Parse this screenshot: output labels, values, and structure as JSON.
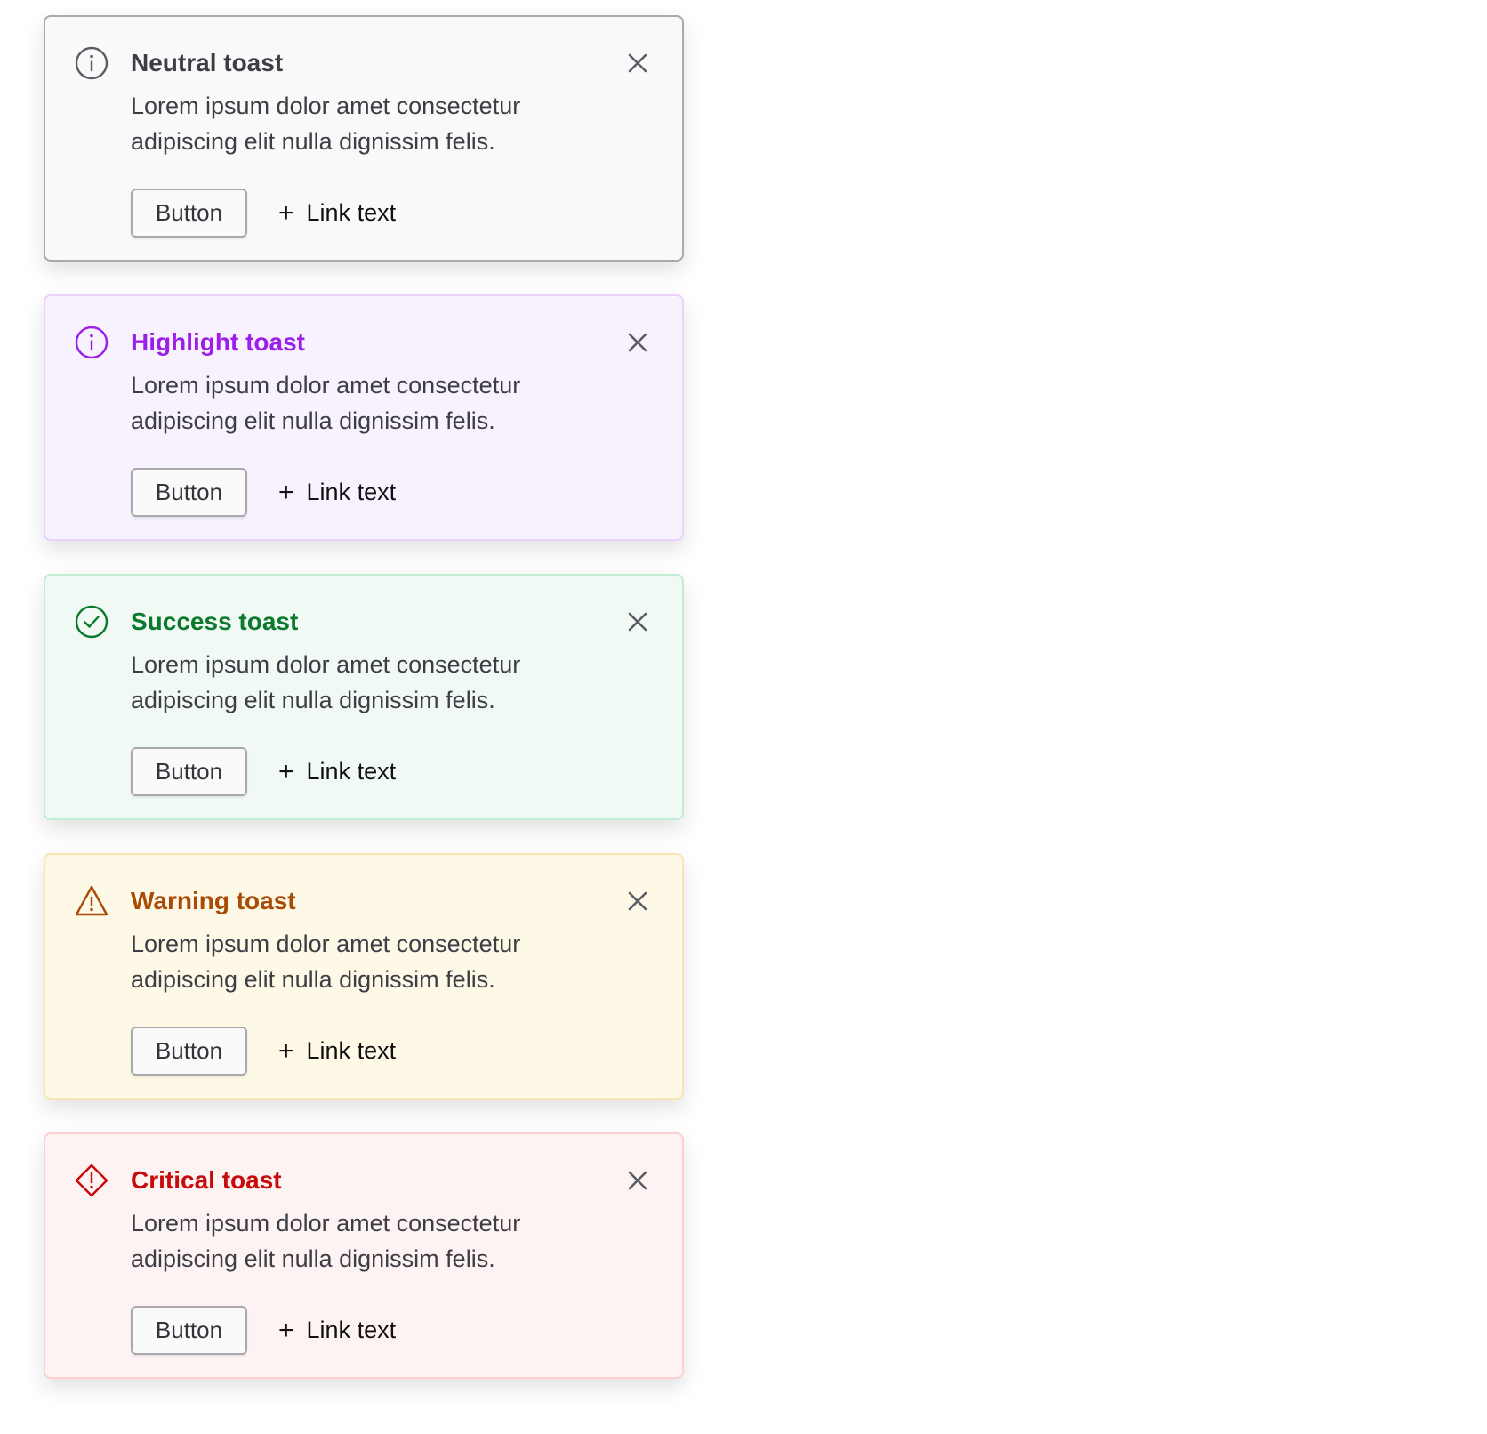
{
  "toasts": [
    {
      "variant": "neutral",
      "icon": "info-icon",
      "title": "Neutral toast",
      "body": "Lorem ipsum dolor amet consectetur adipiscing elit nulla dignissim felis.",
      "button_label": "Button",
      "link_label": "Link text",
      "link_icon": "plus-icon",
      "close_icon": "close-icon",
      "colors": {
        "bg": "#f9f9f9",
        "border": "#a9a9ae",
        "accent": "#3d3d45",
        "icon": "#5c5c66"
      }
    },
    {
      "variant": "highlight",
      "icon": "info-icon",
      "title": "Highlight toast",
      "body": "Lorem ipsum dolor amet consectetur adipiscing elit nulla dignissim felis.",
      "button_label": "Button",
      "link_label": "Link text",
      "link_icon": "plus-icon",
      "close_icon": "close-icon",
      "colors": {
        "bg": "#f8f2fe",
        "border": "#ecd2fb",
        "accent": "#9b1fe8",
        "icon": "#9b1fe8"
      }
    },
    {
      "variant": "success",
      "icon": "check-circle-icon",
      "title": "Success toast",
      "body": "Lorem ipsum dolor amet consectetur adipiscing elit nulla dignissim felis.",
      "button_label": "Button",
      "link_label": "Link text",
      "link_icon": "plus-icon",
      "close_icon": "close-icon",
      "colors": {
        "bg": "#f0f9f4",
        "border": "#c2ecd4",
        "accent": "#0b7a2c",
        "icon": "#0b7a2c"
      }
    },
    {
      "variant": "warning",
      "icon": "warning-triangle-icon",
      "title": "Warning toast",
      "body": "Lorem ipsum dolor amet consectetur adipiscing elit nulla dignissim felis.",
      "button_label": "Button",
      "link_label": "Link text",
      "link_icon": "plus-icon",
      "close_icon": "close-icon",
      "colors": {
        "bg": "#fef8e7",
        "border": "#f8e6b0",
        "accent": "#a84b06",
        "icon": "#a84b06"
      }
    },
    {
      "variant": "critical",
      "icon": "critical-diamond-icon",
      "title": "Critical toast",
      "body": "Lorem ipsum dolor amet consectetur adipiscing elit nulla dignissim felis.",
      "button_label": "Button",
      "link_label": "Link text",
      "link_icon": "plus-icon",
      "close_icon": "close-icon",
      "colors": {
        "bg": "#fef3f3",
        "border": "#fbd0d0",
        "accent": "#c80a0a",
        "icon": "#c80a0a"
      }
    }
  ]
}
